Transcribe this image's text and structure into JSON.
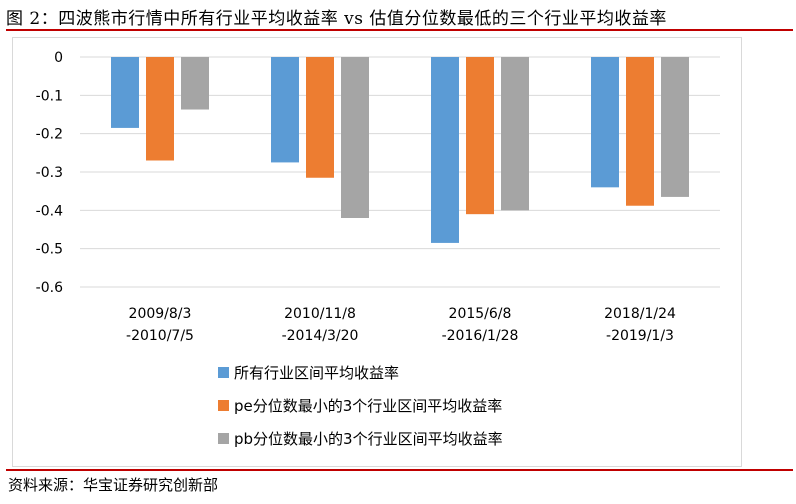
{
  "figure": {
    "title": "图 2：四波熊市行情中所有行业平均收益率 vs 估值分位数最低的三个行业平均收益率",
    "source": "资料来源：华宝证券研究创新部"
  },
  "chart_data": {
    "type": "bar",
    "categories": [
      [
        "2009/8/3",
        "-2010/7/5"
      ],
      [
        "2010/11/8",
        "-2014/3/20"
      ],
      [
        "2015/6/8",
        "-2016/1/28"
      ],
      [
        "2018/1/24",
        "-2019/1/3"
      ]
    ],
    "series": [
      {
        "name": "所有行业区间平均收益率",
        "color": "#5b9bd5",
        "values": [
          -0.185,
          -0.275,
          -0.485,
          -0.34
        ]
      },
      {
        "name": "pe分位数最小的3个行业区间平均收益率",
        "color": "#ed7d31",
        "values": [
          -0.27,
          -0.315,
          -0.41,
          -0.388
        ]
      },
      {
        "name": "pb分位数最小的3个行业区间平均收益率",
        "color": "#a5a5a5",
        "values": [
          -0.137,
          -0.42,
          -0.4,
          -0.365
        ]
      }
    ],
    "y_ticks": [
      "0",
      "-0.1",
      "-0.2",
      "-0.3",
      "-0.4",
      "-0.5",
      "-0.6"
    ],
    "ylim": [
      -0.6,
      0
    ],
    "grid": true,
    "legend_position": "bottom"
  }
}
